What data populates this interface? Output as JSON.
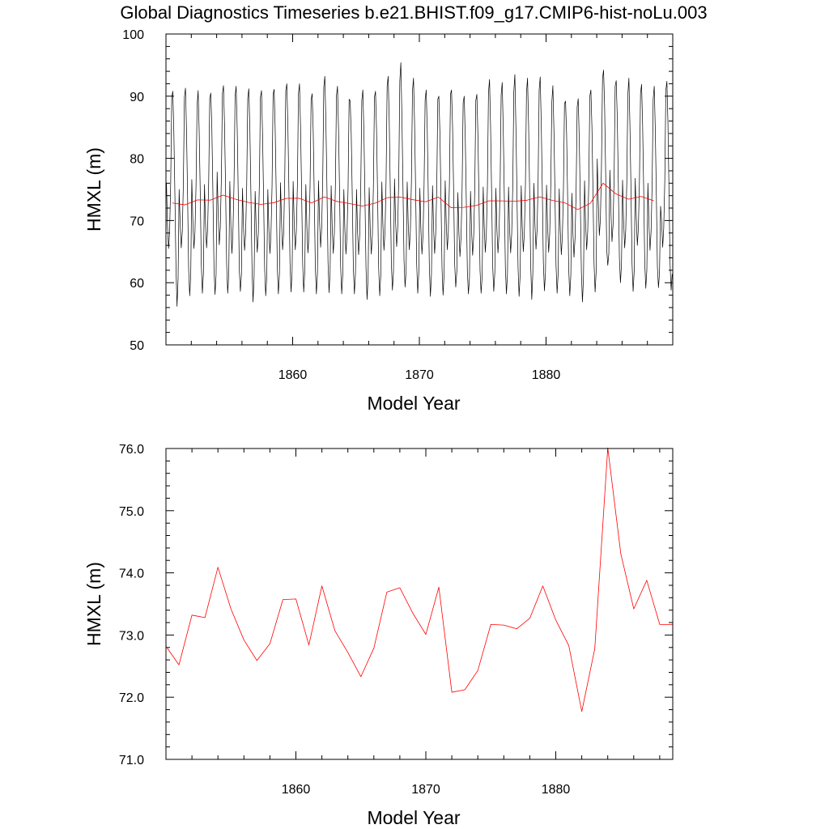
{
  "figure_title": "Global Diagnostics Timeseries b.e21.BHIST.f09_g17.CMIP6-hist-noLu.003",
  "colors": {
    "monthly": "#000000",
    "annual": "#ff0000",
    "axes": "#000000",
    "background": "#ffffff"
  },
  "chart_data": [
    {
      "type": "line",
      "title": "Global Diagnostics Timeseries b.e21.BHIST.f09_g17.CMIP6-hist-noLu.003",
      "xlabel": "Model Year",
      "ylabel": "HMXL (m)",
      "xlim": [
        1850,
        1890
      ],
      "ylim": [
        50,
        100
      ],
      "x_ticks": [
        1860,
        1870,
        1880
      ],
      "x_tick_labels": [
        "1860",
        "1870",
        "1880"
      ],
      "y_ticks": [
        50,
        60,
        70,
        80,
        90,
        100
      ],
      "y_tick_labels": [
        "50",
        "60",
        "70",
        "80",
        "90",
        "100"
      ],
      "series": [
        {
          "style": "monthly",
          "color": "#000000",
          "x_start": 1850.04,
          "x_step": 0.08333,
          "values": [
            76.0,
            69.1,
            65.5,
            68.3,
            76.0,
            89.8,
            90.8,
            84.2,
            74.0,
            62.5,
            56.2,
            60.6,
            75.0,
            69.3,
            65.6,
            68.3,
            75.9,
            89.8,
            91.3,
            84.5,
            74.0,
            62.2,
            57.9,
            61.2,
            76.6,
            69.9,
            65.5,
            68.2,
            75.6,
            88.5,
            90.9,
            84.3,
            74.4,
            63.0,
            58.3,
            61.5,
            75.8,
            69.5,
            65.6,
            68.7,
            76.3,
            89.7,
            90.5,
            84.7,
            74.3,
            62.5,
            58.1,
            61.3,
            77.8,
            71.1,
            66.1,
            68.9,
            76.8,
            90.4,
            91.7,
            85.4,
            75.0,
            63.0,
            58.3,
            61.3,
            76.3,
            69.1,
            64.7,
            68.5,
            76.1,
            90.0,
            91.6,
            84.7,
            74.1,
            62.1,
            58.6,
            61.4,
            75.2,
            68.8,
            65.2,
            68.0,
            75.7,
            89.7,
            91.2,
            84.6,
            74.1,
            62.7,
            56.9,
            61.0,
            74.7,
            68.5,
            64.9,
            67.9,
            76.0,
            89.8,
            90.9,
            84.0,
            73.6,
            62.2,
            57.9,
            61.0,
            75.0,
            68.6,
            64.7,
            67.9,
            75.5,
            90.3,
            91.1,
            84.4,
            74.1,
            62.4,
            58.2,
            61.4,
            76.1,
            69.8,
            65.3,
            68.0,
            76.4,
            90.9,
            92.0,
            85.2,
            74.6,
            63.3,
            58.5,
            61.8,
            76.3,
            69.5,
            65.3,
            68.2,
            75.6,
            90.3,
            92.0,
            85.0,
            74.8,
            63.1,
            58.5,
            61.8,
            75.8,
            69.0,
            64.8,
            67.8,
            75.5,
            89.4,
            90.4,
            84.3,
            73.7,
            62.5,
            58.2,
            61.5,
            76.4,
            70.0,
            65.7,
            68.8,
            76.5,
            91.4,
            93.2,
            85.9,
            75.3,
            63.4,
            58.4,
            61.8,
            75.6,
            68.8,
            64.7,
            67.9,
            75.5,
            90.0,
            91.6,
            84.5,
            74.1,
            62.5,
            58.2,
            61.4,
            75.0,
            68.6,
            64.6,
            67.6,
            75.2,
            89.5,
            89.3,
            83.9,
            73.7,
            62.5,
            58.2,
            61.4,
            75.0,
            68.2,
            64.5,
            67.6,
            75.0,
            89.3,
            91.0,
            84.3,
            73.6,
            62.3,
            57.3,
            61.0,
            75.3,
            68.6,
            64.6,
            67.6,
            75.4,
            89.8,
            90.8,
            84.5,
            73.7,
            62.3,
            57.9,
            61.3,
            76.2,
            69.4,
            65.2,
            68.3,
            76.3,
            91.6,
            93.2,
            86.0,
            75.0,
            63.2,
            58.8,
            61.7,
            76.7,
            70.0,
            65.8,
            68.7,
            76.7,
            92.4,
            95.4,
            86.8,
            75.5,
            63.6,
            59.3,
            62.0,
            76.2,
            69.4,
            65.3,
            68.3,
            76.2,
            90.8,
            92.9,
            85.7,
            74.8,
            63.0,
            58.3,
            61.7,
            75.2,
            68.6,
            64.6,
            67.7,
            75.7,
            89.4,
            91.0,
            84.7,
            74.0,
            62.4,
            57.8,
            61.4,
            75.6,
            68.8,
            64.7,
            67.8,
            75.2,
            89.5,
            90.0,
            84.1,
            73.7,
            62.3,
            58.0,
            61.5,
            76.4,
            69.6,
            65.3,
            68.3,
            76.0,
            90.3,
            91.0,
            85.1,
            74.6,
            63.0,
            59.3,
            61.8,
            74.5,
            68.1,
            64.2,
            67.3,
            74.8,
            88.9,
            90.0,
            83.5,
            73.1,
            61.8,
            58.2,
            60.8,
            74.7,
            68.3,
            64.4,
            67.5,
            75.0,
            89.3,
            90.3,
            83.8,
            73.3,
            62.0,
            58.3,
            61.0,
            75.4,
            68.8,
            64.9,
            68.0,
            75.6,
            90.6,
            92.7,
            85.0,
            74.1,
            62.6,
            58.6,
            61.6,
            75.2,
            68.6,
            64.8,
            67.8,
            75.4,
            90.2,
            92.2,
            84.7,
            73.9,
            62.4,
            58.2,
            61.4,
            75.4,
            68.6,
            64.8,
            67.9,
            75.5,
            90.7,
            93.5,
            85.0,
            74.0,
            62.5,
            57.8,
            61.3,
            75.6,
            68.9,
            65.0,
            68.1,
            75.8,
            90.6,
            92.9,
            85.4,
            74.6,
            62.8,
            57.3,
            61.4,
            76.0,
            69.5,
            65.4,
            68.4,
            76.1,
            91.0,
            93.1,
            85.5,
            74.7,
            63.1,
            58.7,
            61.7,
            75.7,
            69.0,
            64.9,
            67.9,
            75.5,
            89.0,
            91.7,
            84.5,
            74.0,
            62.7,
            58.3,
            61.5,
            75.1,
            68.5,
            64.5,
            67.5,
            75.0,
            88.8,
            89.2,
            83.9,
            73.5,
            62.2,
            57.9,
            61.2,
            74.4,
            67.9,
            64.1,
            67.2,
            74.6,
            88.3,
            89.6,
            83.0,
            72.8,
            61.7,
            56.9,
            60.8,
            76.4,
            69.5,
            65.3,
            68.3,
            76.1,
            90.0,
            91.0,
            85.0,
            74.5,
            63.0,
            58.5,
            61.8,
            79.9,
            73.1,
            67.6,
            70.2,
            78.4,
            92.8,
            94.2,
            88.4,
            77.6,
            65.3,
            62.8,
            64.7,
            78.1,
            71.3,
            66.6,
            69.3,
            77.0,
            91.6,
            92.5,
            86.5,
            75.9,
            64.0,
            60.0,
            63.0,
            76.5,
            69.9,
            65.6,
            68.5,
            76.1,
            90.2,
            92.9,
            85.2,
            74.7,
            63.0,
            58.6,
            61.8,
            76.8,
            70.4,
            66.0,
            68.9,
            76.4,
            90.4,
            91.9,
            85.4,
            75.1,
            63.3,
            59.1,
            62.0,
            76.0,
            69.3,
            65.2,
            68.2,
            75.7,
            89.5,
            91.6,
            84.6,
            74.2,
            62.5,
            59.2,
            61.6,
            72.3,
            69.8,
            65.7,
            68.8,
            76.4,
            91.0,
            92.4,
            85.6,
            74.6,
            63.0,
            58.8,
            61.4
          ]
        },
        {
          "style": "annual_mean",
          "color": "#ff0000",
          "x": [
            1850.5,
            1851.5,
            1852.5,
            1853.5,
            1854.5,
            1855.5,
            1856.5,
            1857.5,
            1858.5,
            1859.5,
            1860.5,
            1861.5,
            1862.5,
            1863.5,
            1864.5,
            1865.5,
            1866.5,
            1867.5,
            1868.5,
            1869.5,
            1870.5,
            1871.5,
            1872.5,
            1873.5,
            1874.5,
            1875.5,
            1876.5,
            1877.5,
            1878.5,
            1879.5,
            1880.5,
            1881.5,
            1882.5,
            1883.5,
            1884.5,
            1885.5,
            1886.5,
            1887.5,
            1888.5
          ],
          "values": [
            72.82,
            72.52,
            73.32,
            73.28,
            74.09,
            73.42,
            72.92,
            72.59,
            72.86,
            73.57,
            73.58,
            72.84,
            73.79,
            73.07,
            72.72,
            72.33,
            72.79,
            73.69,
            73.76,
            73.35,
            73.01,
            73.77,
            72.08,
            72.12,
            72.43,
            73.17,
            73.16,
            73.1,
            73.27,
            73.79,
            73.24,
            72.83,
            71.77,
            72.78,
            76.01,
            74.31,
            73.42,
            73.88,
            73.17
          ]
        }
      ]
    },
    {
      "type": "line",
      "title": "",
      "xlabel": "Model Year",
      "ylabel": "HMXL (m)",
      "xlim": [
        1850,
        1889
      ],
      "ylim": [
        71.0,
        76.0
      ],
      "x_ticks": [
        1860,
        1870,
        1880
      ],
      "x_tick_labels": [
        "1860",
        "1870",
        "1880"
      ],
      "y_ticks": [
        71,
        72,
        73,
        74,
        75,
        76
      ],
      "y_tick_labels": [
        "71.0",
        "72.0",
        "73.0",
        "74.0",
        "75.0",
        "76.0"
      ],
      "series": [
        {
          "style": "annual_mean",
          "color": "#ff0000",
          "x": [
            1850,
            1851,
            1852,
            1853,
            1854,
            1855,
            1856,
            1857,
            1858,
            1859,
            1860,
            1861,
            1862,
            1863,
            1864,
            1865,
            1866,
            1867,
            1868,
            1869,
            1870,
            1871,
            1872,
            1873,
            1874,
            1875,
            1876,
            1877,
            1878,
            1879,
            1880,
            1881,
            1882,
            1883,
            1884,
            1885,
            1886,
            1887,
            1888,
            1889
          ],
          "values": [
            72.82,
            72.52,
            73.32,
            73.28,
            74.09,
            73.42,
            72.92,
            72.59,
            72.86,
            73.57,
            73.58,
            72.84,
            73.79,
            73.07,
            72.72,
            72.33,
            72.79,
            73.69,
            73.76,
            73.35,
            73.01,
            73.77,
            72.08,
            72.12,
            72.43,
            73.17,
            73.16,
            73.1,
            73.27,
            73.79,
            73.24,
            72.83,
            71.77,
            72.78,
            76.01,
            74.31,
            73.42,
            73.88,
            73.17,
            73.17
          ]
        }
      ]
    }
  ]
}
